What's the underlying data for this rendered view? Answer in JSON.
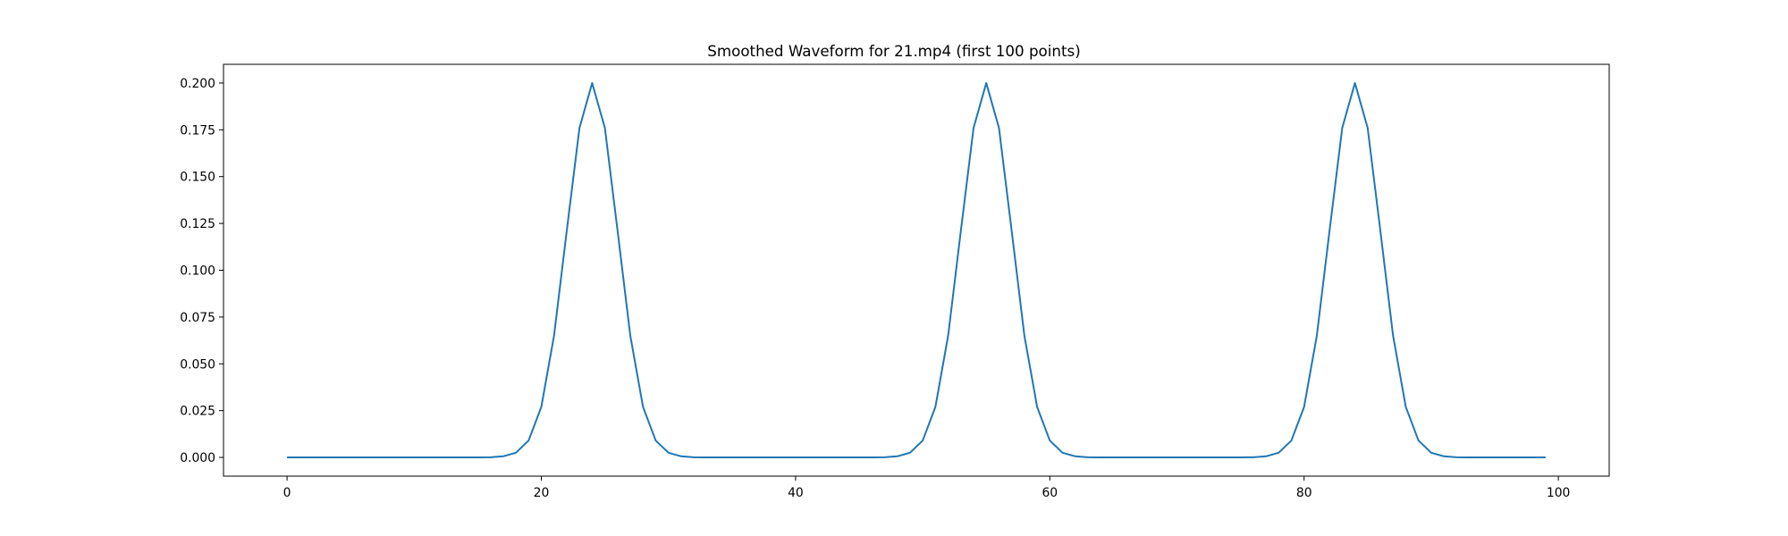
{
  "chart_data": {
    "type": "line",
    "title": "Smoothed Waveform for 21.mp4 (first 100 points)",
    "xlabel": "",
    "ylabel": "",
    "xlim": [
      -5,
      104
    ],
    "ylim": [
      -0.01,
      0.21
    ],
    "xticks": [
      0,
      20,
      40,
      60,
      80,
      100
    ],
    "yticks": [
      0.0,
      0.025,
      0.05,
      0.075,
      0.1,
      0.125,
      0.15,
      0.175,
      0.2
    ],
    "xtick_labels": [
      "0",
      "20",
      "40",
      "60",
      "80",
      "100"
    ],
    "ytick_labels": [
      "0.000",
      "0.025",
      "0.050",
      "0.075",
      "0.100",
      "0.125",
      "0.150",
      "0.175",
      "0.200"
    ],
    "grid": false,
    "legend": "none",
    "line_color": "#1f77b4",
    "x": [
      0,
      1,
      2,
      3,
      4,
      5,
      6,
      7,
      8,
      9,
      10,
      11,
      12,
      13,
      14,
      15,
      16,
      17,
      18,
      19,
      20,
      21,
      22,
      23,
      24,
      25,
      26,
      27,
      28,
      29,
      30,
      31,
      32,
      33,
      34,
      35,
      36,
      37,
      38,
      39,
      40,
      41,
      42,
      43,
      44,
      45,
      46,
      47,
      48,
      49,
      50,
      51,
      52,
      53,
      54,
      55,
      56,
      57,
      58,
      59,
      60,
      61,
      62,
      63,
      64,
      65,
      66,
      67,
      68,
      69,
      70,
      71,
      72,
      73,
      74,
      75,
      76,
      77,
      78,
      79,
      80,
      81,
      82,
      83,
      84,
      85,
      86,
      87,
      88,
      89,
      90,
      91,
      92,
      93,
      94,
      95,
      96,
      97,
      98,
      99
    ],
    "y": [
      0,
      0,
      0,
      0,
      0,
      0,
      0,
      0,
      0,
      0,
      0,
      0,
      0,
      0,
      0,
      0,
      0.0001,
      0.0006,
      0.0025,
      0.009,
      0.027,
      0.065,
      0.121,
      0.176,
      0.2,
      0.176,
      0.121,
      0.065,
      0.027,
      0.009,
      0.0025,
      0.0006,
      0.0001,
      0,
      0,
      0,
      0,
      0,
      0,
      0,
      0,
      0,
      0,
      0,
      0,
      0,
      0,
      0.0001,
      0.0006,
      0.0025,
      0.009,
      0.027,
      0.065,
      0.121,
      0.176,
      0.2,
      0.176,
      0.121,
      0.065,
      0.027,
      0.009,
      0.0025,
      0.0006,
      0.0001,
      0,
      0,
      0,
      0,
      0,
      0,
      0,
      0,
      0,
      0,
      0,
      0,
      0.0001,
      0.0006,
      0.0025,
      0.009,
      0.027,
      0.065,
      0.121,
      0.176,
      0.2,
      0.176,
      0.121,
      0.065,
      0.027,
      0.009,
      0.0025,
      0.0006,
      0.0001,
      0,
      0,
      0,
      0,
      0,
      0,
      0
    ]
  }
}
